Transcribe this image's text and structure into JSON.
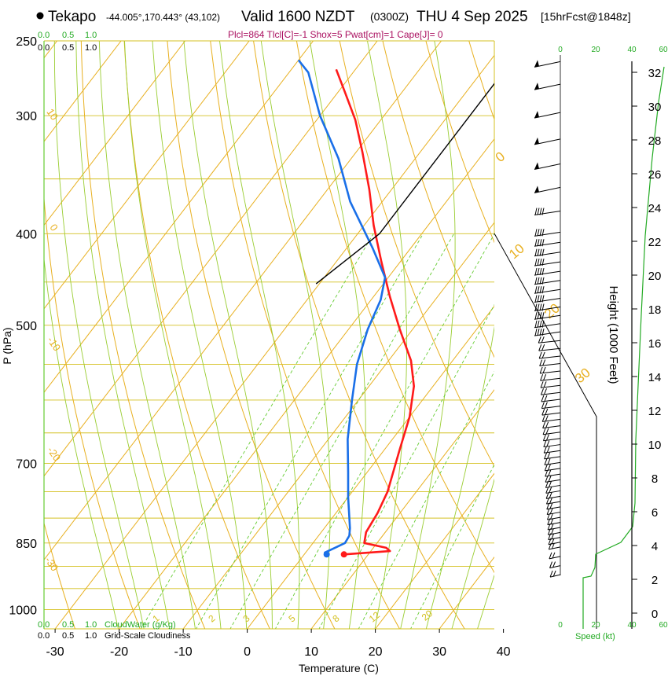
{
  "header": {
    "location": "Tekapo",
    "coords": "-44.005°,170.443° (43,102)",
    "valid": "Valid 1600 NZDT",
    "utc": "(0300Z)",
    "date": "THU 4 Sep 2025",
    "forecast": "[15hrFcst@1848z]",
    "params": "Plcl=864 Tlcl[C]=-1 Shox=5 Pwat[cm]=1 Cape[J]= 0"
  },
  "legend": {
    "cloudwater_label": "CloudWater (g/Kg)",
    "cloudiness_label": "Grid-Scale Cloudiness",
    "cw_ticks": [
      "0.0",
      "0.5",
      "1.0"
    ],
    "cl_ticks": [
      "0.0",
      "0.5",
      "1.0"
    ],
    "speed_label": "Speed (kt)",
    "speed_ticks": [
      "0",
      "20",
      "40",
      "60"
    ]
  },
  "colors": {
    "isotherm": "#e8b020",
    "isobar": "#d4c020",
    "dry_adiabat": "#e8b020",
    "moist_adiabat": "#9acd32",
    "mixing_ratio": "#66cc33",
    "temperature": "#ff1a1a",
    "dewpoint": "#1a6fe8",
    "green_text": "#22aa22",
    "orange_text": "#e8b020",
    "magenta_text": "#aa1060"
  },
  "chart_data": {
    "type": "line",
    "title": "Skew-T log-P sounding",
    "xlabel": "Temperature (C)",
    "ylabel": "P (hPa)",
    "y2label": "Height (1000 Feet)",
    "x_ticks": [
      -30,
      -20,
      -10,
      0,
      10,
      20,
      30,
      40
    ],
    "p_ticks": [
      250,
      300,
      400,
      500,
      700,
      850,
      1000
    ],
    "height_ticks": [
      0,
      2,
      4,
      6,
      8,
      10,
      12,
      14,
      16,
      18,
      20,
      22,
      24,
      26,
      28,
      30,
      32
    ],
    "dry_adiabat_labels": [
      "10",
      "0",
      "-10",
      "-20",
      "-30"
    ],
    "isotherm_labels": [
      "0",
      "10",
      "20",
      "30"
    ],
    "mixing_ratio_labels": [
      "1",
      "2",
      "3",
      "5",
      "8",
      "12",
      "20"
    ],
    "series": [
      {
        "name": "Temperature",
        "points": [
          [
            6.2,
            874
          ],
          [
            13,
            867
          ],
          [
            12,
            860
          ],
          [
            8,
            850
          ],
          [
            7,
            828
          ],
          [
            6.5,
            790
          ],
          [
            5.5,
            750
          ],
          [
            2.5,
            680
          ],
          [
            0,
            625
          ],
          [
            -3,
            580
          ],
          [
            -6.5,
            545
          ],
          [
            -12,
            505
          ],
          [
            -17.5,
            466
          ],
          [
            -23,
            428
          ],
          [
            -28.5,
            392
          ],
          [
            -33.5,
            359
          ],
          [
            -39,
            328
          ],
          [
            -44,
            303
          ],
          [
            -49,
            283
          ],
          [
            -53,
            268
          ]
        ]
      },
      {
        "name": "Dewpoint",
        "points": [
          [
            3.5,
            874
          ],
          [
            3,
            870
          ],
          [
            4,
            860
          ],
          [
            5,
            850
          ],
          [
            4.8,
            835
          ],
          [
            4,
            820
          ],
          [
            0,
            760
          ],
          [
            -3,
            715
          ],
          [
            -7,
            660
          ],
          [
            -11,
            600
          ],
          [
            -14.5,
            550
          ],
          [
            -17,
            505
          ],
          [
            -18.5,
            470
          ],
          [
            -20.5,
            445
          ],
          [
            -26,
            414
          ],
          [
            -35,
            370
          ],
          [
            -42,
            333
          ],
          [
            -50,
            300
          ],
          [
            -57,
            270
          ],
          [
            -60,
            262
          ]
        ]
      },
      {
        "name": "Cloud cover profile",
        "points": [
          [
            -26.6,
            255
          ],
          [
            -26.6,
            400
          ],
          [
            -30.5,
            452
          ]
        ]
      }
    ],
    "parcel_start": {
      "temperature": 6.2,
      "dewpoint": 3.5,
      "pressure": 874
    },
    "wind_profile_p": [
      1000,
      980,
      960,
      940,
      920,
      900,
      880,
      860,
      850,
      840,
      830,
      820,
      810,
      800,
      790,
      780,
      770,
      760,
      750,
      740,
      730,
      720,
      710,
      700,
      690,
      680,
      670,
      660,
      650,
      640,
      630,
      620,
      610,
      600,
      590,
      580,
      570,
      560,
      550,
      540,
      530,
      520,
      510,
      500,
      490,
      480,
      470,
      460,
      450,
      440,
      430,
      420,
      410,
      400,
      380,
      360,
      340,
      320,
      300,
      280,
      265
    ]
  }
}
